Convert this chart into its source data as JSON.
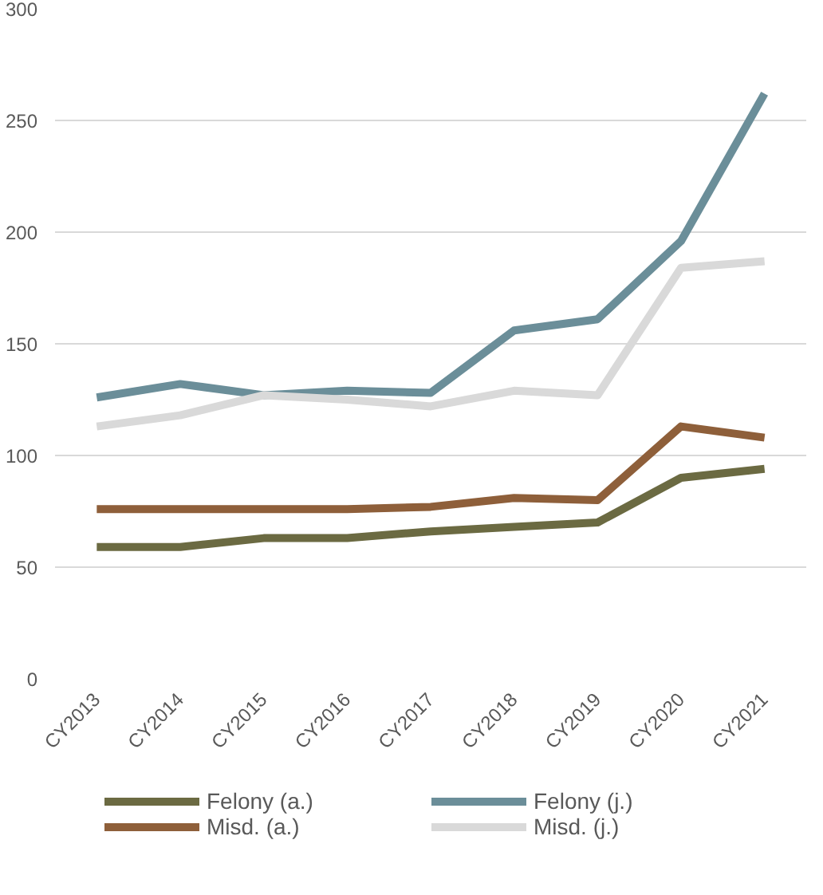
{
  "chart_data": {
    "type": "line",
    "categories": [
      "CY2013",
      "CY2014",
      "CY2015",
      "CY2016",
      "CY2017",
      "CY2018",
      "CY2019",
      "CY2020",
      "CY2021"
    ],
    "series": [
      {
        "name": "Felony (a.)",
        "color": "#6b6a42",
        "values": [
          59,
          59,
          63,
          63,
          66,
          68,
          70,
          90,
          94
        ]
      },
      {
        "name": "Misd. (a.)",
        "color": "#8e5f3a",
        "values": [
          76,
          76,
          76,
          76,
          77,
          81,
          80,
          113,
          108
        ]
      },
      {
        "name": "Felony (j.)",
        "color": "#6b8e99",
        "values": [
          126,
          132,
          127,
          129,
          128,
          156,
          161,
          196,
          262
        ]
      },
      {
        "name": "Misd. (j.)",
        "color": "#d9d9d9",
        "values": [
          113,
          118,
          127,
          125,
          122,
          129,
          127,
          184,
          187
        ]
      }
    ],
    "ylim": [
      0,
      300
    ],
    "yticks": [
      0,
      50,
      100,
      150,
      200,
      250,
      300
    ],
    "grid": "y",
    "legend": "bottom",
    "marker": "none",
    "line_style": "solid"
  }
}
